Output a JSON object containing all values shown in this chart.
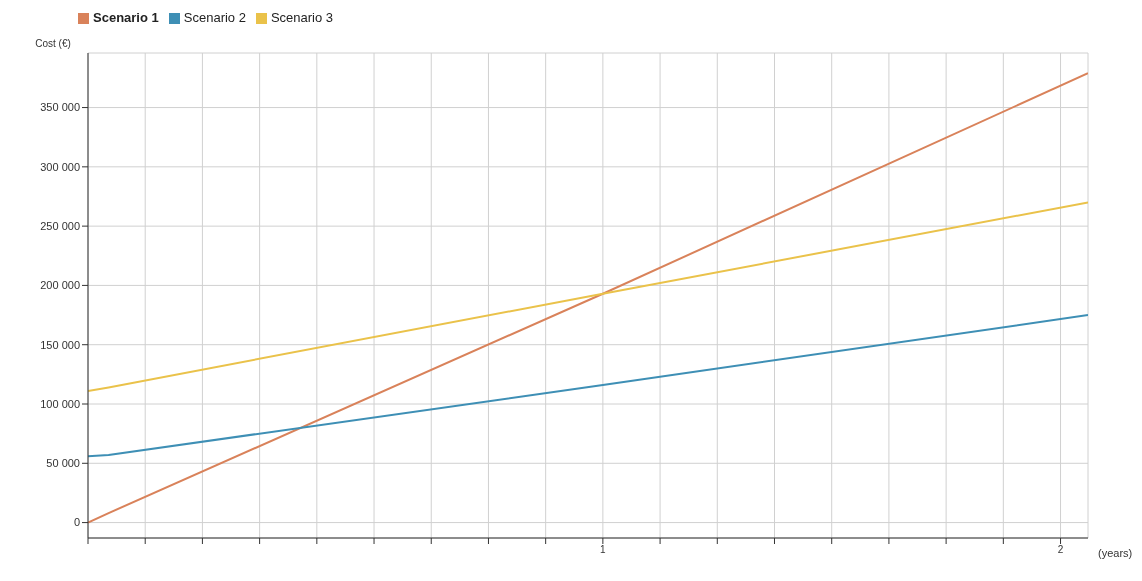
{
  "chart_data": {
    "type": "line",
    "ylabel": "Cost (€)",
    "xlabel": "(years)",
    "x": [
      -0.125,
      -0.08,
      1,
      2.06
    ],
    "series": [
      {
        "name": "Scenario 1",
        "color": "#d9825a",
        "values": [
          0,
          8000,
          193000,
          379000
        ]
      },
      {
        "name": "Scenario 2",
        "color": "#3e8fb5",
        "values": [
          56000,
          57000,
          116000,
          175000
        ]
      },
      {
        "name": "Scenario 3",
        "color": "#eac24a",
        "values": [
          111000,
          114000,
          193000,
          270000
        ]
      }
    ],
    "xlim": [
      -0.125,
      2.06
    ],
    "xticks": [
      {
        "value": -0.125,
        "label": null
      },
      {
        "value": 0,
        "label": null
      },
      {
        "value": 0.125,
        "label": null
      },
      {
        "value": 0.25,
        "label": null
      },
      {
        "value": 0.375,
        "label": null
      },
      {
        "value": 0.5,
        "label": null
      },
      {
        "value": 0.625,
        "label": null
      },
      {
        "value": 0.75,
        "label": null
      },
      {
        "value": 0.875,
        "label": null
      },
      {
        "value": 1,
        "label": "1"
      },
      {
        "value": 1.125,
        "label": null
      },
      {
        "value": 1.25,
        "label": null
      },
      {
        "value": 1.375,
        "label": null
      },
      {
        "value": 1.5,
        "label": null
      },
      {
        "value": 1.625,
        "label": null
      },
      {
        "value": 1.75,
        "label": null
      },
      {
        "value": 1.875,
        "label": null
      },
      {
        "value": 2,
        "label": "2"
      }
    ],
    "ylim": [
      -13000,
      396000
    ],
    "yticks": [
      0,
      {
        "value": 50000,
        "label": "50 000"
      },
      {
        "value": 100000,
        "label": "100 000"
      },
      {
        "value": 150000,
        "label": "150 000"
      },
      {
        "value": 200000,
        "label": "200 000"
      },
      {
        "value": 250000,
        "label": "250 000"
      },
      {
        "value": 300000,
        "label": "300 000"
      },
      {
        "value": 350000,
        "label": "350 000"
      }
    ],
    "grid": true,
    "legend": "top left",
    "marker": "none",
    "line_style": "solid"
  }
}
